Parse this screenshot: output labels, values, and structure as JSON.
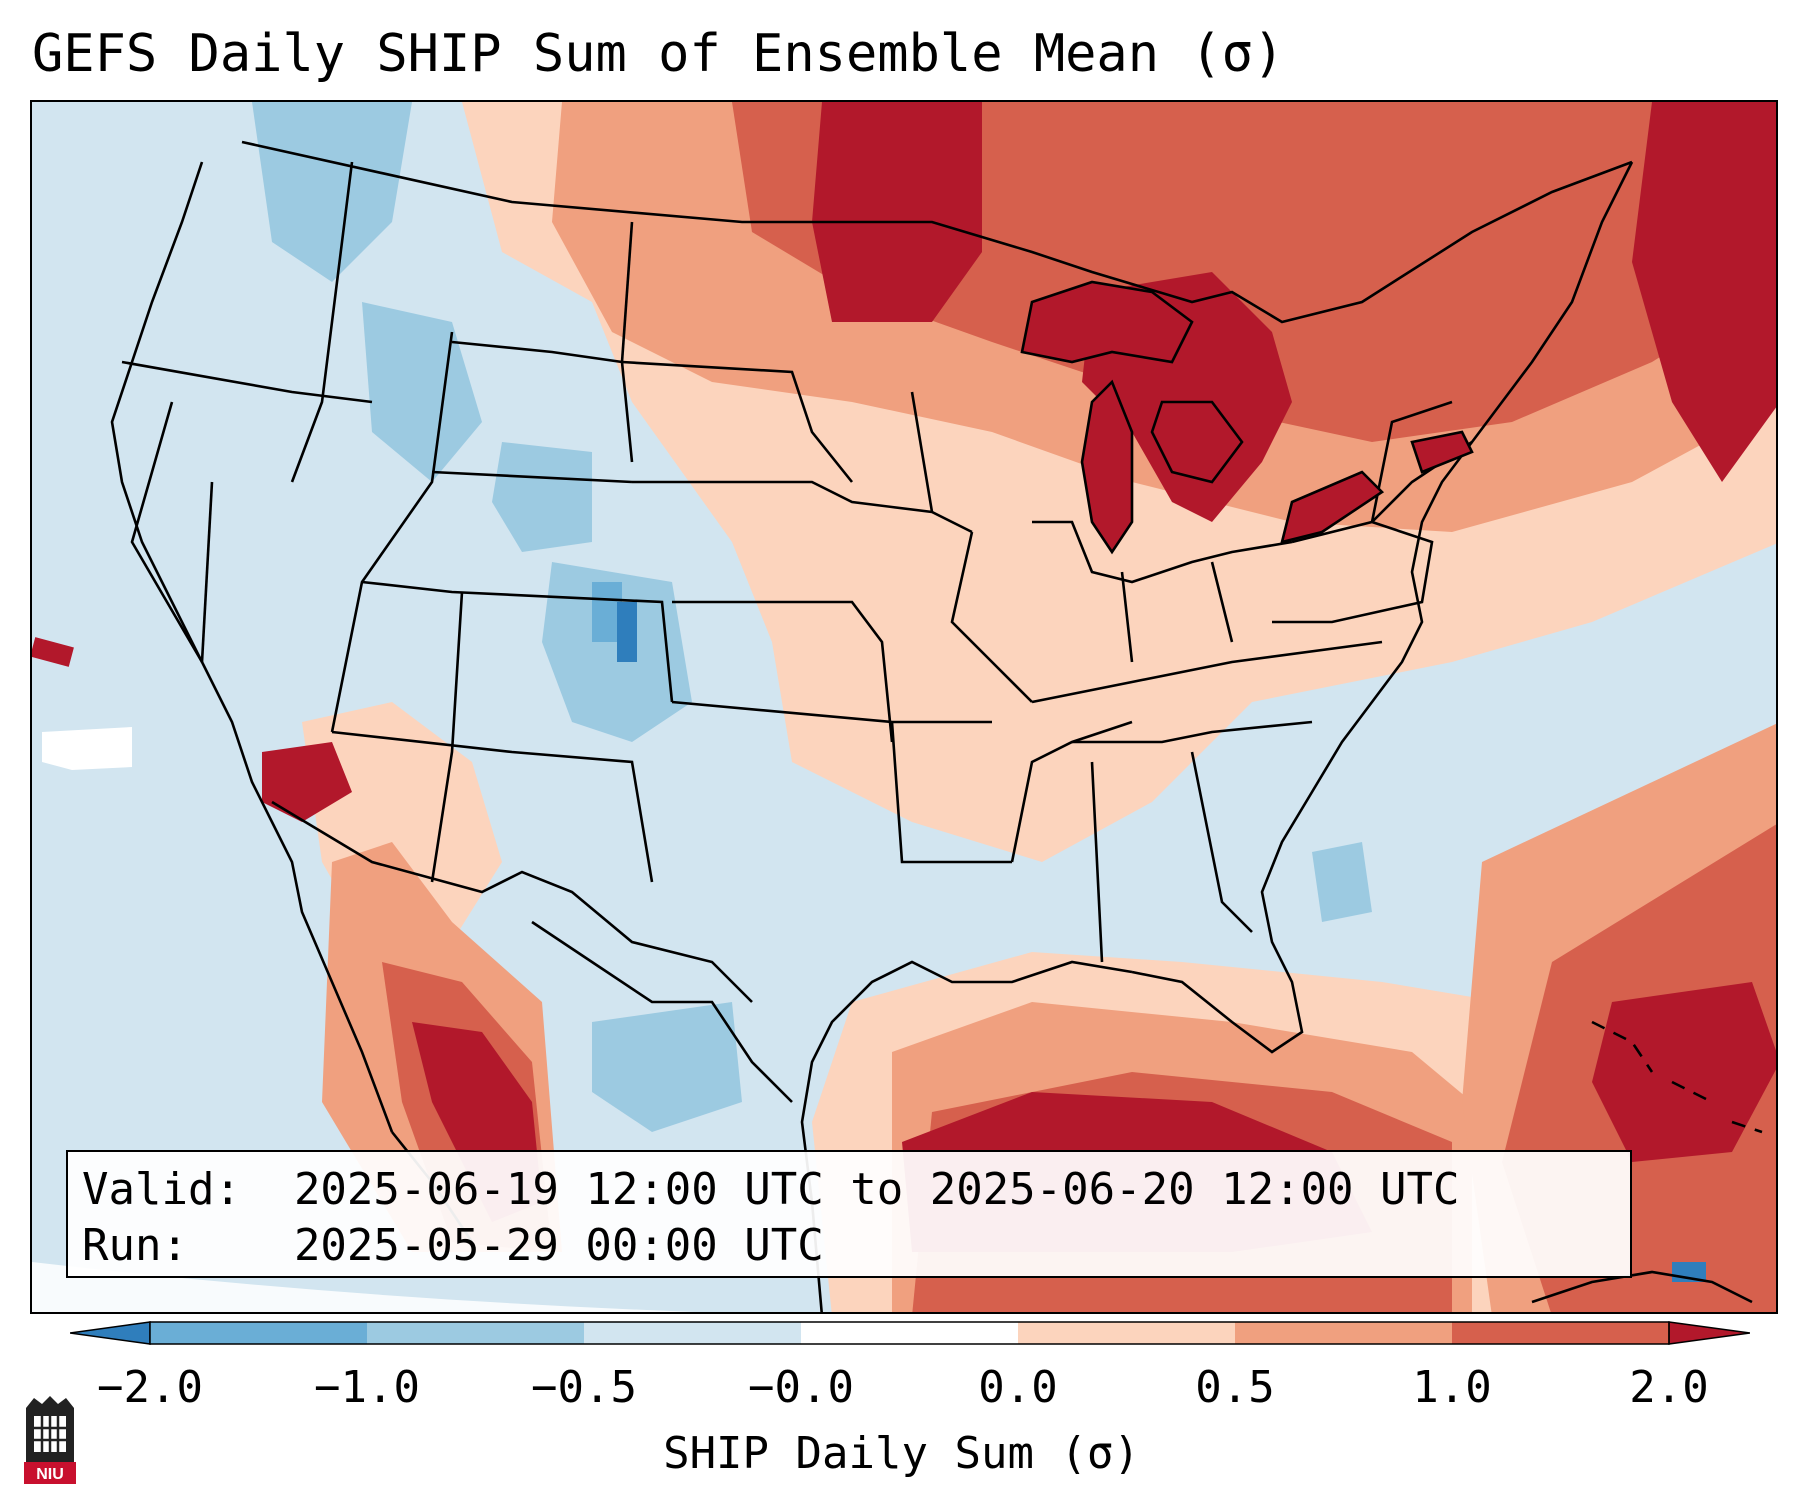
{
  "title": "GEFS Daily SHIP Sum of Ensemble Mean (σ)",
  "info": {
    "valid_label": "Valid:",
    "valid_value": "2025-06-19 12:00 UTC to 2025-06-20 12:00 UTC",
    "run_label": "Run:",
    "run_value": "2025-05-29 00:00 UTC"
  },
  "colorbar": {
    "label": "SHIP Daily Sum (σ)",
    "ticks": [
      "−2.0",
      "−1.0",
      "−0.5",
      "−0.0",
      "0.0",
      "0.5",
      "1.0",
      "2.0"
    ],
    "colors": [
      "#2f7ebc",
      "#6aaed6",
      "#9ccae1",
      "#d2e5f0",
      "#ffffff",
      "#fcd4bd",
      "#f0a07f",
      "#d6604d",
      "#b2182b"
    ]
  },
  "logo": {
    "text": "NIU"
  }
}
